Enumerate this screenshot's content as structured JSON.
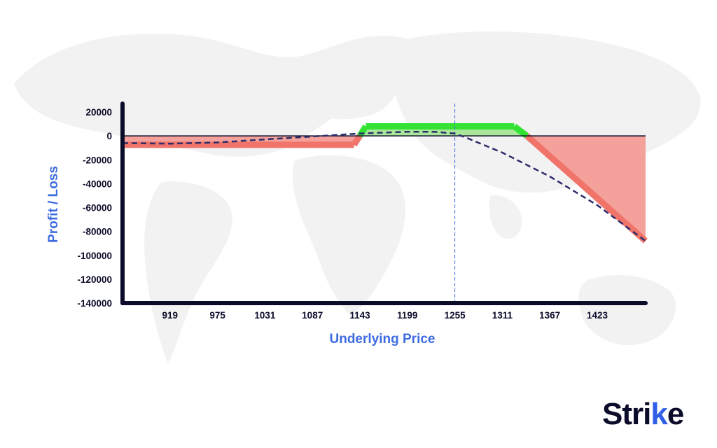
{
  "brand": {
    "name_main": "Stri",
    "name_k": "k",
    "name_end": "e",
    "accent": "#2f5fe6"
  },
  "colors": {
    "loss_band": "#f0746a",
    "loss_fill": "#f4a19b",
    "profit_band": "#33e233",
    "profit_fill": "#a9e89b",
    "axis": "#0b0c2a",
    "dashed_curve": "#2c2d6a",
    "spot_line": "#3d6be0",
    "title": "#3d6be0",
    "map": "#f2f2f2"
  },
  "chart_data": {
    "type": "line",
    "xlabel": "Underlying Price",
    "ylabel": "Profit / Loss",
    "x_ticks": [
      919,
      975,
      1031,
      1087,
      1143,
      1199,
      1255,
      1311,
      1367,
      1423
    ],
    "y_ticks": [
      20000,
      0,
      -20000,
      -40000,
      -60000,
      -80000,
      -100000,
      -120000,
      -140000
    ],
    "xlim": [
      863,
      1480
    ],
    "ylim": [
      -140000,
      20000
    ],
    "current_price": 1255,
    "series": [
      {
        "style": "payoff-at-expiry",
        "x": [
          863,
          1136,
          1150,
          1325,
          1340,
          1480
        ],
        "y": [
          -7500,
          -7500,
          8000,
          8000,
          0,
          -88000
        ]
      },
      {
        "style": "current-pnl-dashed",
        "x": [
          863,
          919,
          975,
          1031,
          1087,
          1143,
          1199,
          1230,
          1255,
          1270,
          1311,
          1367,
          1423,
          1480
        ],
        "y": [
          -6000,
          -6500,
          -5500,
          -3000,
          -500,
          2000,
          3500,
          3500,
          2000,
          -2000,
          -14000,
          -34000,
          -58000,
          -88000
        ]
      }
    ]
  }
}
